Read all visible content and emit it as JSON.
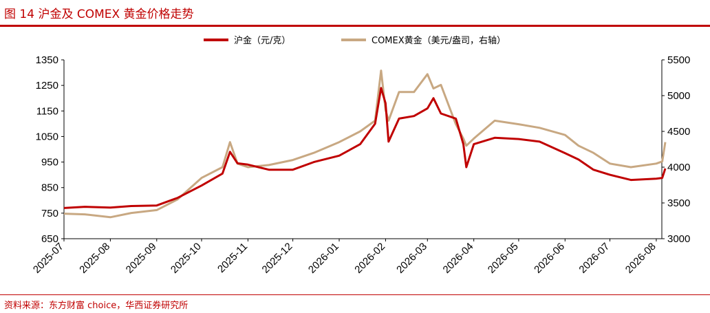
{
  "figure": {
    "title": "图 14   沪金及 COMEX 黄金价格走势",
    "source": "资料来源：东方财富 choice，华西证券研究所"
  },
  "colors": {
    "accent": "#c00000",
    "left_series": "#c00000",
    "right_series": "#c8a882"
  },
  "chart_data": {
    "type": "line",
    "xlabel": "",
    "ylabel": "",
    "x_ticks": [
      "2025-07",
      "2025-08",
      "2025-09",
      "2025-10",
      "2025-11",
      "2025-12",
      "2026-01",
      "2026-02",
      "2026-03",
      "2026-04",
      "2026-05",
      "2026-06",
      "2026-07",
      "2026-08"
    ],
    "x_range": [
      "2025-07",
      "2026-08"
    ],
    "y_left": {
      "range": [
        650,
        1350
      ],
      "ticks": [
        650,
        750,
        850,
        950,
        1050,
        1150,
        1250,
        1350
      ]
    },
    "y_right": {
      "range": [
        3000,
        5500
      ],
      "ticks": [
        3000,
        3500,
        4000,
        4500,
        5000,
        5500
      ]
    },
    "grid": false,
    "legend_position": "top-center",
    "series": [
      {
        "name": "沪金（元/克）",
        "axis": "left",
        "color": "#c00000",
        "x": [
          "2025-07",
          "2025-07-15",
          "2025-08",
          "2025-08-15",
          "2025-09",
          "2025-09-15",
          "2025-10",
          "2025-10-15",
          "2025-10-20",
          "2025-10-25",
          "2025-11",
          "2025-11-15",
          "2025-12",
          "2025-12-15",
          "2026-01",
          "2026-01-15",
          "2026-01-25",
          "2026-01-29",
          "2026-02",
          "2026-02-03",
          "2026-02-10",
          "2026-02-20",
          "2026-03",
          "2026-03-05",
          "2026-03-10",
          "2026-03-20",
          "2026-03-25",
          "2026-03-27",
          "2026-04",
          "2026-04-15",
          "2026-05",
          "2026-05-15",
          "2026-06",
          "2026-06-10",
          "2026-06-20",
          "2026-07",
          "2026-07-15",
          "2026-08",
          "2026-08-05",
          "2026-08-07"
        ],
        "values": [
          770,
          775,
          772,
          778,
          780,
          810,
          858,
          905,
          990,
          945,
          940,
          920,
          920,
          950,
          975,
          1020,
          1100,
          1240,
          1180,
          1030,
          1120,
          1130,
          1160,
          1200,
          1140,
          1120,
          1020,
          930,
          1020,
          1045,
          1040,
          1030,
          985,
          960,
          920,
          900,
          880,
          885,
          888,
          925
        ]
      },
      {
        "name": "COMEX黄金（美元/盎司，右轴）",
        "axis": "right",
        "color": "#c8a882",
        "x": [
          "2025-07",
          "2025-07-15",
          "2025-08",
          "2025-08-15",
          "2025-09",
          "2025-09-15",
          "2025-10",
          "2025-10-15",
          "2025-10-20",
          "2025-10-25",
          "2025-11",
          "2025-11-15",
          "2025-12",
          "2025-12-15",
          "2026-01",
          "2026-01-15",
          "2026-01-25",
          "2026-01-29",
          "2026-02",
          "2026-02-03",
          "2026-02-10",
          "2026-02-20",
          "2026-03",
          "2026-03-05",
          "2026-03-10",
          "2026-03-20",
          "2026-03-25",
          "2026-03-27",
          "2026-04",
          "2026-04-15",
          "2026-05",
          "2026-05-15",
          "2026-06",
          "2026-06-10",
          "2026-06-20",
          "2026-07",
          "2026-07-15",
          "2026-08",
          "2026-08-05",
          "2026-08-07"
        ],
        "values": [
          3350,
          3340,
          3300,
          3360,
          3400,
          3550,
          3850,
          4000,
          4350,
          4050,
          4000,
          4030,
          4100,
          4200,
          4350,
          4500,
          4650,
          5350,
          4800,
          4650,
          5050,
          5050,
          5300,
          5100,
          5150,
          4600,
          4400,
          4300,
          4400,
          4650,
          4600,
          4550,
          4450,
          4300,
          4200,
          4050,
          4000,
          4050,
          4080,
          4350
        ]
      }
    ]
  }
}
